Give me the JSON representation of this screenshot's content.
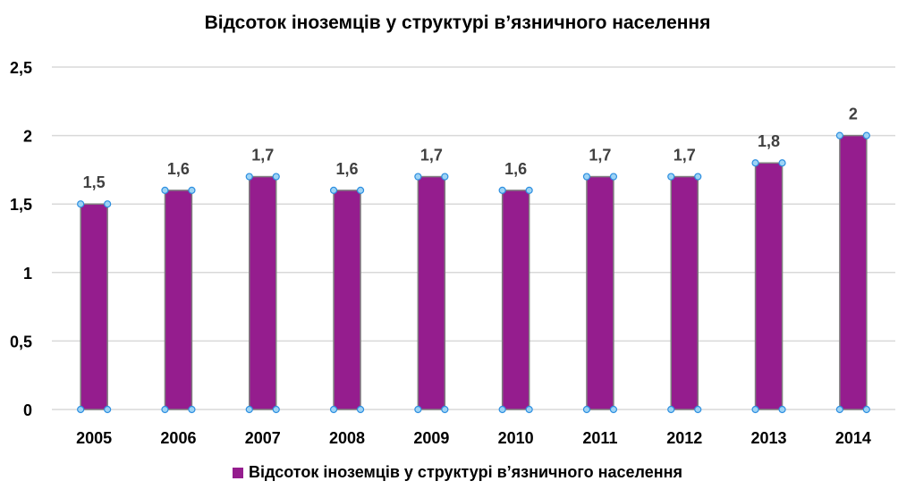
{
  "chart_data": {
    "type": "bar",
    "title": "Відсоток іноземців у структурі в’язничного населення",
    "categories": [
      "2005",
      "2006",
      "2007",
      "2008",
      "2009",
      "2010",
      "2011",
      "2012",
      "2013",
      "2014"
    ],
    "series": [
      {
        "name": "Відсоток іноземців у структурі в’язничного населення",
        "values": [
          1.5,
          1.6,
          1.7,
          1.6,
          1.7,
          1.6,
          1.7,
          1.7,
          1.8,
          2
        ],
        "color": "#951d8e"
      }
    ],
    "data_labels": [
      "1,5",
      "1,6",
      "1,7",
      "1,6",
      "1,7",
      "1,6",
      "1,7",
      "1,7",
      "1,8",
      "2"
    ],
    "y_ticks": [
      0,
      0.5,
      1,
      1.5,
      2,
      2.5
    ],
    "y_tick_labels": [
      "0",
      "0,5",
      "1",
      "1,5",
      "2",
      "2,5"
    ],
    "ylim": [
      0,
      2.5
    ],
    "xlabel": "",
    "ylabel": "",
    "grid": true,
    "legend": "bottom"
  }
}
